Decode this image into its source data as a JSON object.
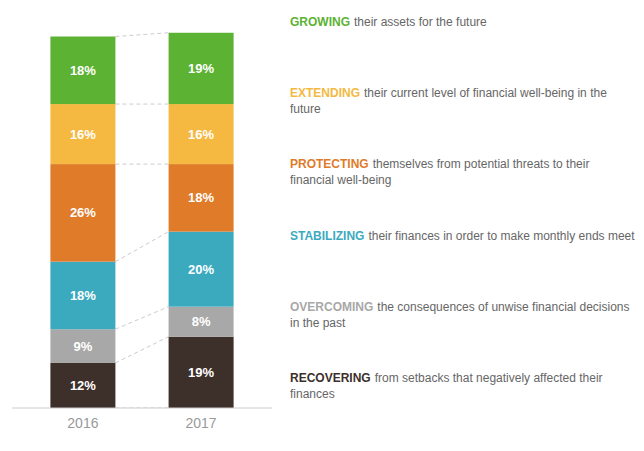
{
  "chart_data": {
    "type": "bar",
    "stacked": true,
    "categories": [
      "2016",
      "2017"
    ],
    "series": [
      {
        "name": "RECOVERING",
        "color": "#3d2f2a",
        "values": [
          12,
          19
        ],
        "value_labels": [
          "12%",
          "19%"
        ]
      },
      {
        "name": "OVERCOMING",
        "color": "#a8a8a8",
        "values": [
          9,
          8
        ],
        "value_labels": [
          "9%",
          "8%"
        ]
      },
      {
        "name": "STABILIZING",
        "color": "#3baabf",
        "values": [
          18,
          20
        ],
        "value_labels": [
          "18%",
          "20%"
        ]
      },
      {
        "name": "PROTECTING",
        "color": "#e07b2a",
        "values": [
          26,
          18
        ],
        "value_labels": [
          "26%",
          "18%"
        ]
      },
      {
        "name": "EXTENDING",
        "color": "#f5b942",
        "values": [
          16,
          16
        ],
        "value_labels": [
          "16%",
          "16%"
        ]
      },
      {
        "name": "GROWING",
        "color": "#5cb233",
        "values": [
          18,
          19
        ],
        "value_labels": [
          "18%",
          "19%"
        ]
      }
    ],
    "annotations": [
      "from setbacks that negatively affected their finances",
      "the consequences of unwise financial decisions in the past",
      "their finances in order to make monthly ends meet",
      "themselves from potential threats to their financial well-being",
      "their current level of financial well-being in the future",
      "their assets for the future"
    ],
    "ylim": [
      0,
      105
    ],
    "data_labels": true,
    "tick_labels": "x",
    "legend": "right"
  }
}
